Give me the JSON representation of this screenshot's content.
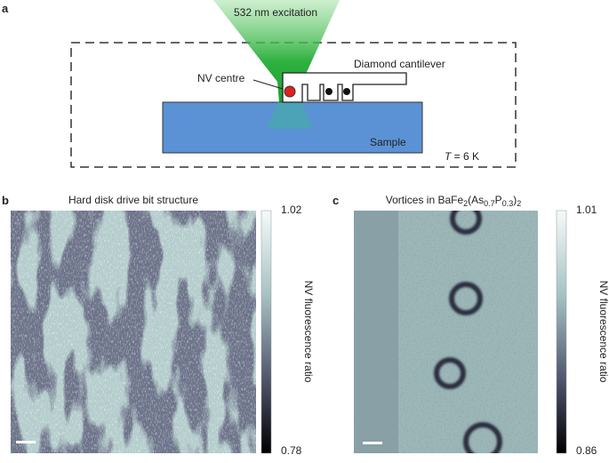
{
  "panel_a": {
    "label": "a",
    "beam": "532 nm excitation",
    "cantilever": "Diamond cantilever",
    "nv": "NV centre",
    "sample": "Sample",
    "temperature": {
      "symbol": "T",
      "rest": " = 6 K"
    }
  },
  "panel_b": {
    "label": "b",
    "title": "Hard disk drive bit structure",
    "colorbar": {
      "max": "1.02",
      "min": "0.78",
      "label": "NV fluorescence ratio"
    }
  },
  "panel_c": {
    "label": "c",
    "title": {
      "t1": "Vortices in BaFe",
      "s1": "2",
      "t2": "(As",
      "s2": "0.7",
      "t3": "P",
      "s3": "0.3",
      "t4": ")",
      "s4": "2"
    },
    "colorbar": {
      "max": "1.01",
      "min": "0.86",
      "label": "NV fluorescence ratio"
    }
  }
}
